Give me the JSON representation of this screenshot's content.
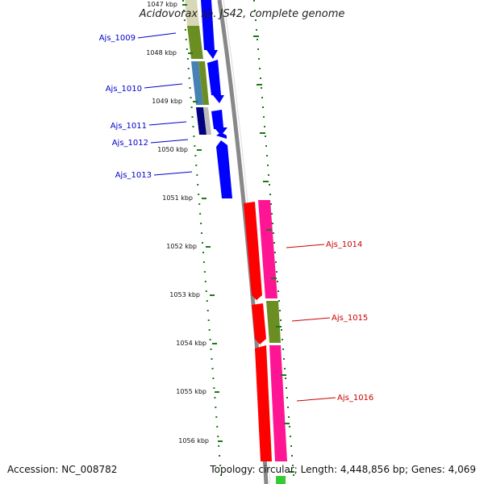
{
  "title": "Acidovorax sp. JS42, complete genome",
  "accession_line": "Accession: NC_008782",
  "summary_line": "Topology: circular; Length: 4,448,856 bp; Genes: 4,069",
  "scale_labels": [
    "1047 kbp",
    "1048 kbp",
    "1049 kbp",
    "1050 kbp",
    "1051 kbp",
    "1052 kbp",
    "1053 kbp",
    "1054 kbp",
    "1055 kbp",
    "1056 kbp"
  ],
  "colors": {
    "forward_label": "#0000cc",
    "reverse_label": "#cc0000",
    "backbone": "#888888",
    "tick_green": "#1a7a1a",
    "blue": "#0000ff",
    "red": "#ff0000",
    "pink": "#ff1493",
    "olive": "#6b8e23",
    "steel": "#4682b4",
    "navy": "#000080",
    "beige": "#d8d8b8",
    "grey_light": "#bbbbbb"
  },
  "genes": [
    {
      "name": "Ajs_1009",
      "strand": "forward"
    },
    {
      "name": "Ajs_1010",
      "strand": "forward"
    },
    {
      "name": "Ajs_1011",
      "strand": "forward"
    },
    {
      "name": "Ajs_1012",
      "strand": "forward"
    },
    {
      "name": "Ajs_1013",
      "strand": "forward"
    },
    {
      "name": "Ajs_1014",
      "strand": "reverse"
    },
    {
      "name": "Ajs_1015",
      "strand": "reverse"
    },
    {
      "name": "Ajs_1016",
      "strand": "reverse"
    }
  ]
}
